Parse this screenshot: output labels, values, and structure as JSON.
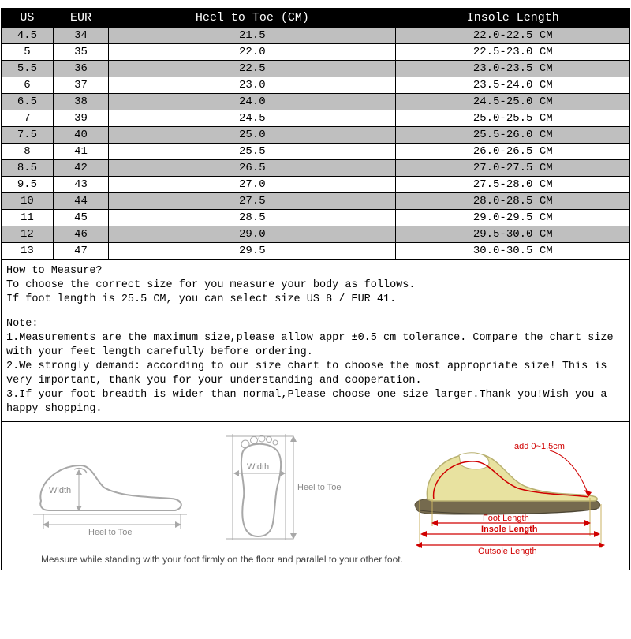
{
  "table": {
    "columns": [
      "US",
      "EUR",
      "Heel to Toe (CM)",
      "Insole Length"
    ],
    "rows": [
      [
        "4.5",
        "34",
        "21.5",
        "22.0-22.5 CM"
      ],
      [
        "5",
        "35",
        "22.0",
        "22.5-23.0 CM"
      ],
      [
        "5.5",
        "36",
        "22.5",
        "23.0-23.5 CM"
      ],
      [
        "6",
        "37",
        "23.0",
        "23.5-24.0 CM"
      ],
      [
        "6.5",
        "38",
        "24.0",
        "24.5-25.0 CM"
      ],
      [
        "7",
        "39",
        "24.5",
        "25.0-25.5 CM"
      ],
      [
        "7.5",
        "40",
        "25.0",
        "25.5-26.0 CM"
      ],
      [
        "8",
        "41",
        "25.5",
        "26.0-26.5 CM"
      ],
      [
        "8.5",
        "42",
        "26.5",
        "27.0-27.5 CM"
      ],
      [
        "9.5",
        "43",
        "27.0",
        "27.5-28.0 CM"
      ],
      [
        "10",
        "44",
        "27.5",
        "28.0-28.5 CM"
      ],
      [
        "11",
        "45",
        "28.5",
        "29.0-29.5 CM"
      ],
      [
        "12",
        "46",
        "29.0",
        "29.5-30.0 CM"
      ],
      [
        "13",
        "47",
        "29.5",
        "30.0-30.5 CM"
      ]
    ],
    "header_bg": "#000000",
    "header_fg": "#ffffff",
    "row_odd_bg": "#bfbfbf",
    "row_even_bg": "#ffffff",
    "border_color": "#000000",
    "font_family": "Courier New"
  },
  "how_to_measure": {
    "title": "How to Measure?",
    "line1": "To choose the correct size for you measure your body as follows.",
    "line2": "If foot length is 25.5 CM, you can select size US 8 / EUR 41."
  },
  "note": {
    "title": "Note:",
    "item1": "1.Measurements are the maximum size,please allow appr ±0.5 cm tolerance. Compare the chart size with your feet length carefully before ordering.",
    "item2": "2.We strongly demand: according to our size chart to choose the most appropriate size! This is very important, thank you for your understanding and cooperation.",
    "item3": "3.If your foot breadth is wider than normal,Please choose one size larger.Thank you!Wish you a happy shopping."
  },
  "diagram": {
    "caption": "Measure while standing with your foot firmly on the floor and parallel to your other foot.",
    "side_width_label": "Width",
    "side_heel_toe_label": "Heel to Toe",
    "top_width_label": "Width",
    "top_heel_toe_label": "Heel to Toe",
    "add_label": "add 0~1.5cm",
    "foot_length_label": "Foot Length",
    "insole_length_label": "Insole Length",
    "outsole_length_label": "Outsole Length",
    "colors": {
      "outline_gray": "#a8a8a8",
      "red": "#d00000",
      "shoe_fill": "#e8e2a0",
      "shoe_sole": "#756a4e"
    }
  }
}
